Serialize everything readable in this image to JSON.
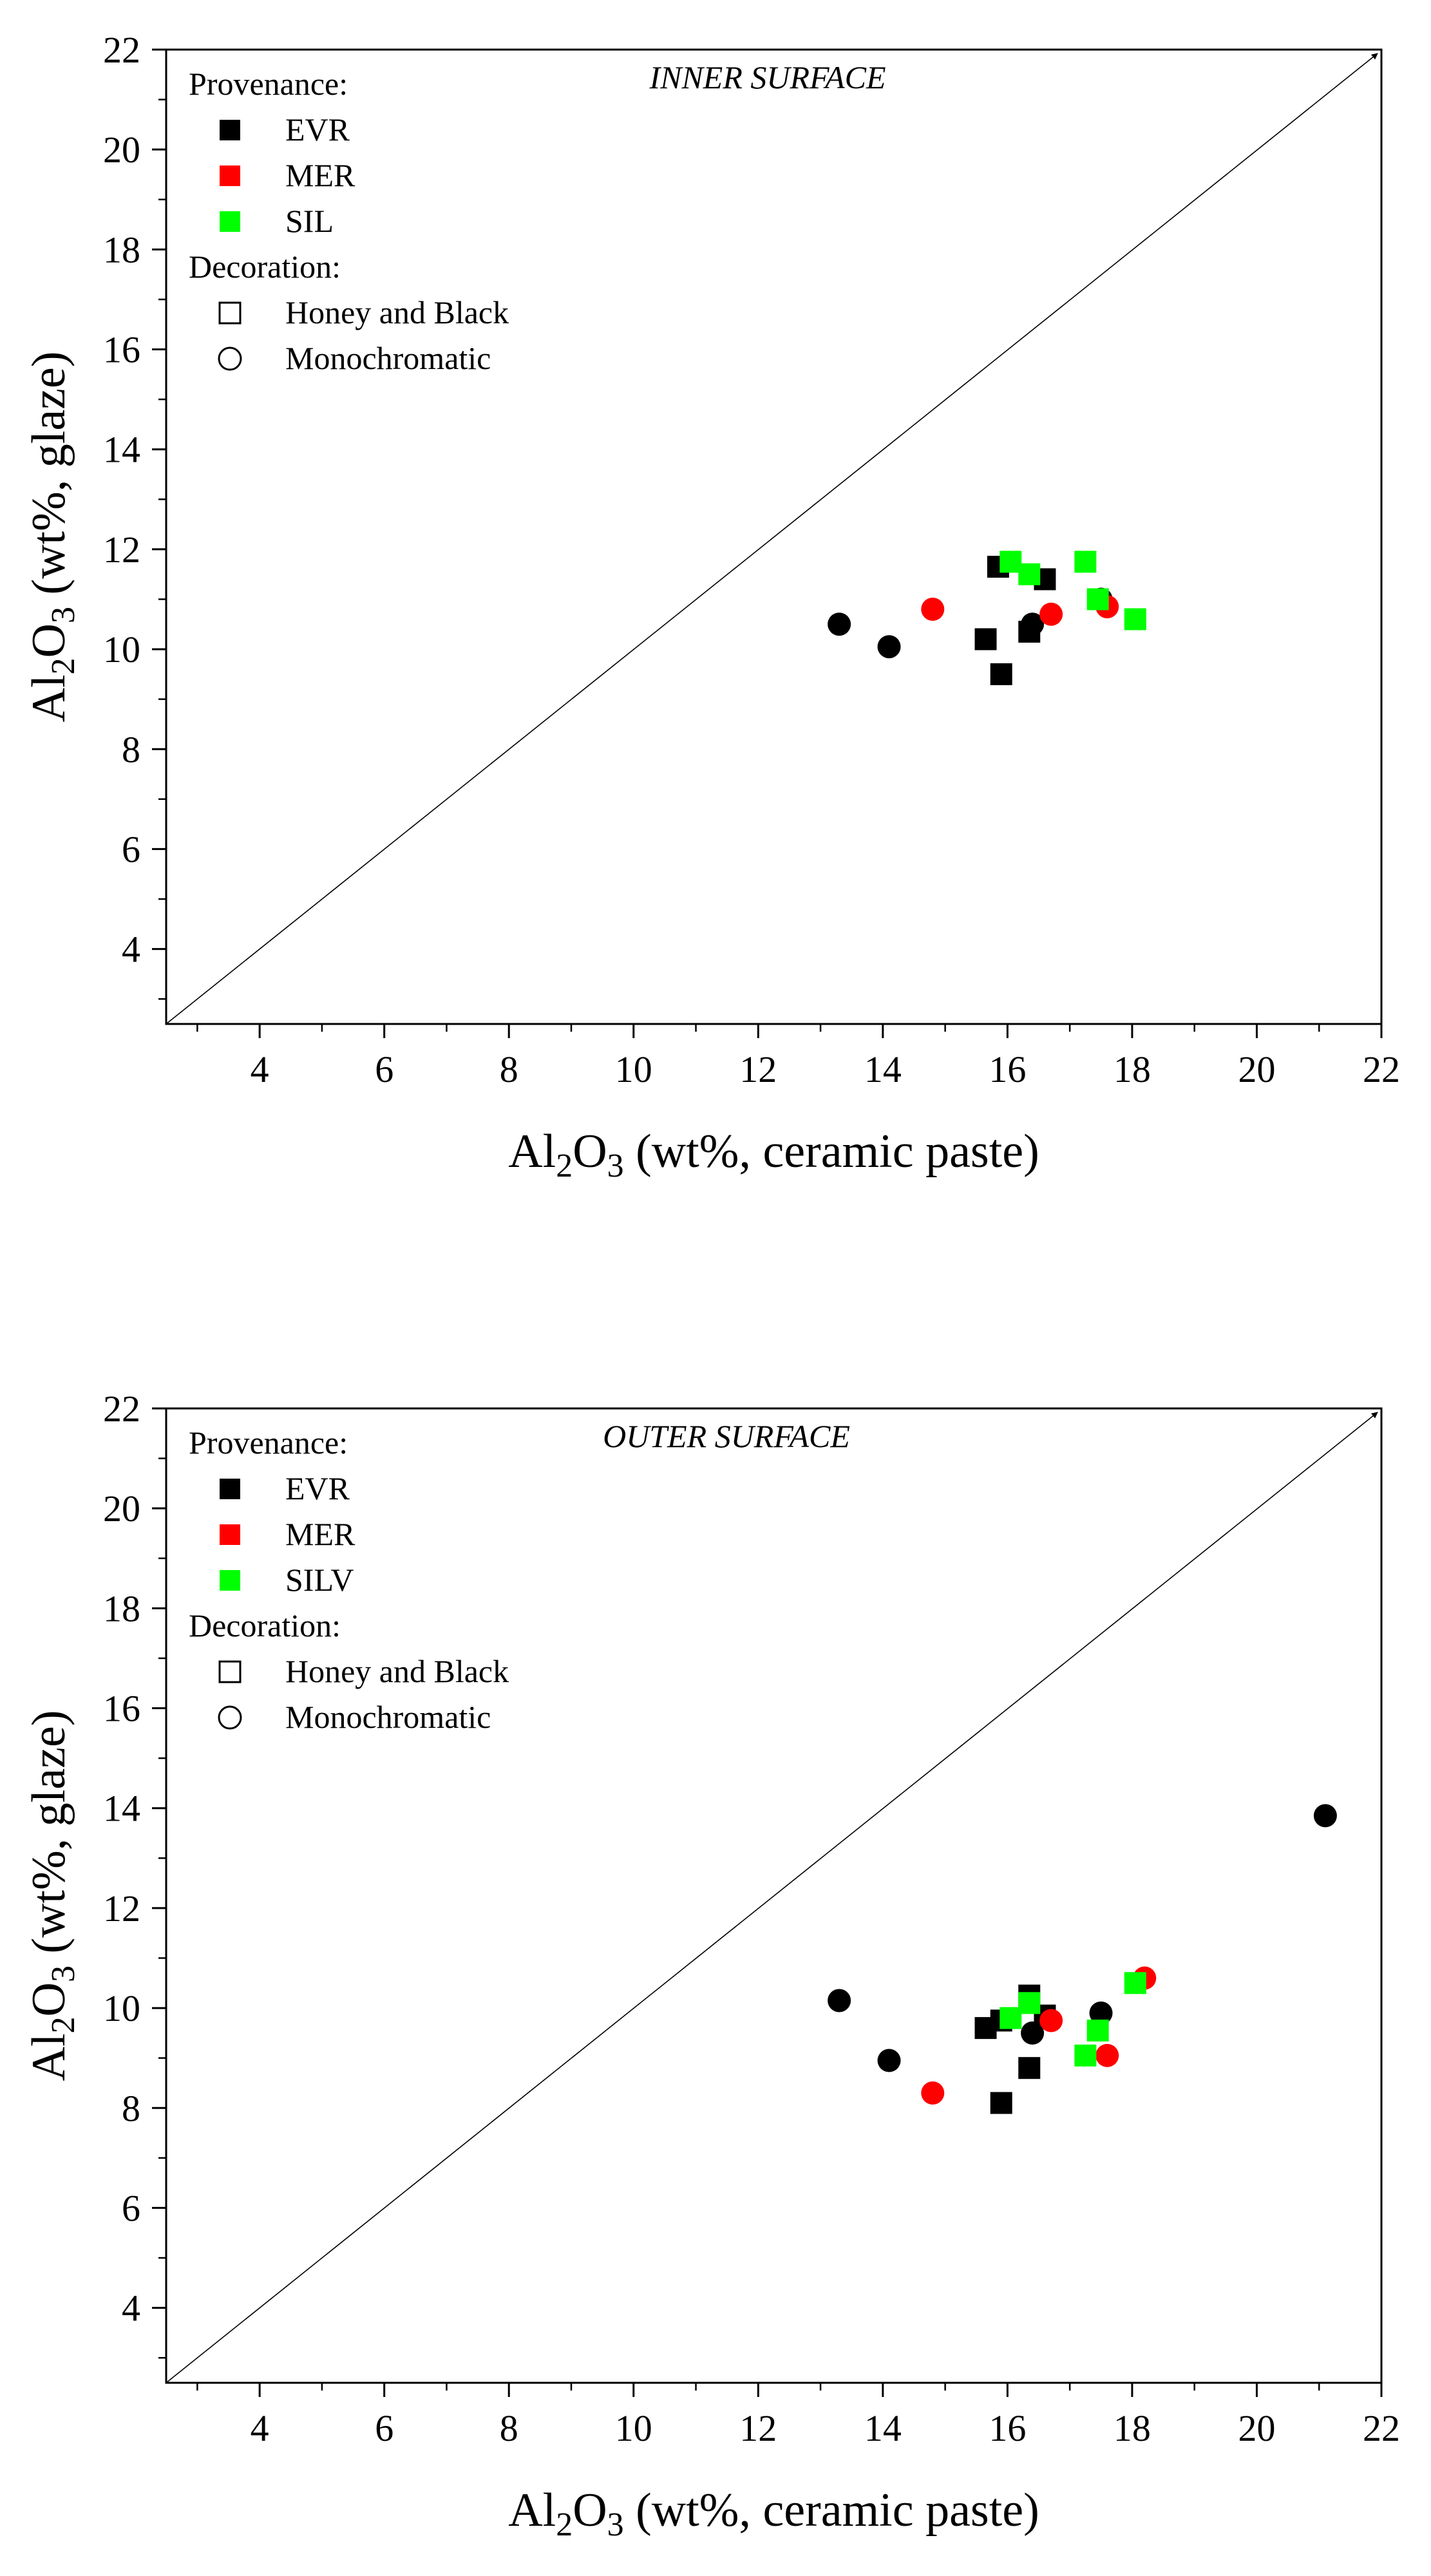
{
  "legend": {
    "decoration_heading": "Decoration:",
    "decoration": [
      {
        "label": "Honey and Black",
        "marker": "square"
      },
      {
        "label": "Monochromatic",
        "marker": "circle"
      }
    ]
  },
  "colors": {
    "EVR": "#000000",
    "MER": "#ff0000",
    "SIL": "#00ff00",
    "SILV": "#00ff00"
  },
  "chart_data": [
    {
      "type": "scatter",
      "title": "INNER SURFACE",
      "xlabel": "Al₂O₃ (wt%, ceramic paste)",
      "ylabel": "Al₂O₃ (wt%, glaze)",
      "xlim": [
        2.5,
        22
      ],
      "ylim": [
        2.5,
        22
      ],
      "xticks": [
        "4",
        "6",
        "8",
        "10",
        "12",
        "14",
        "16",
        "18",
        "20",
        "22"
      ],
      "yticks": [
        "4",
        "6",
        "8",
        "10",
        "12",
        "14",
        "16",
        "18",
        "20",
        "22"
      ],
      "reference_line": "y = x",
      "provenance_heading": "Provenance:",
      "legend_provenance": [
        "EVR",
        "MER",
        "SIL"
      ],
      "series": [
        {
          "provenance": "EVR",
          "decoration": "Honey and Black",
          "marker": "square",
          "points": [
            [
              15.85,
              11.65
            ],
            [
              16.6,
              11.4
            ],
            [
              15.65,
              10.2
            ],
            [
              16.35,
              10.35
            ],
            [
              15.9,
              9.5
            ]
          ]
        },
        {
          "provenance": "EVR",
          "decoration": "Monochromatic",
          "marker": "circle",
          "points": [
            [
              13.3,
              10.5
            ],
            [
              14.1,
              10.05
            ],
            [
              16.4,
              10.5
            ],
            [
              17.5,
              11.0
            ]
          ]
        },
        {
          "provenance": "MER",
          "decoration": "Monochromatic",
          "marker": "circle",
          "points": [
            [
              14.8,
              10.8
            ],
            [
              16.7,
              10.7
            ],
            [
              17.6,
              10.85
            ]
          ]
        },
        {
          "provenance": "SIL",
          "decoration": "Honey and Black",
          "marker": "square",
          "points": [
            [
              16.05,
              11.75
            ],
            [
              16.35,
              11.5
            ],
            [
              17.25,
              11.75
            ],
            [
              17.45,
              11.0
            ],
            [
              18.05,
              10.6
            ]
          ]
        }
      ]
    },
    {
      "type": "scatter",
      "title": "OUTER SURFACE",
      "xlabel": "Al₂O₃ (wt%, ceramic paste)",
      "ylabel": "Al₂O₃ (wt%, glaze)",
      "xlim": [
        2.5,
        22
      ],
      "ylim": [
        2.5,
        22
      ],
      "xticks": [
        "4",
        "6",
        "8",
        "10",
        "12",
        "14",
        "16",
        "18",
        "20",
        "22"
      ],
      "yticks": [
        "4",
        "6",
        "8",
        "10",
        "12",
        "14",
        "16",
        "18",
        "20",
        "22"
      ],
      "reference_line": "y = x",
      "provenance_heading": "Provenance:",
      "legend_provenance": [
        "EVR",
        "MER",
        "SILV"
      ],
      "series": [
        {
          "provenance": "EVR",
          "decoration": "Honey and Black",
          "marker": "square",
          "points": [
            [
              15.65,
              9.6
            ],
            [
              15.9,
              9.75
            ],
            [
              16.35,
              10.25
            ],
            [
              16.6,
              9.85
            ],
            [
              16.35,
              8.8
            ],
            [
              15.9,
              8.1
            ]
          ]
        },
        {
          "provenance": "EVR",
          "decoration": "Monochromatic",
          "marker": "circle",
          "points": [
            [
              13.3,
              10.15
            ],
            [
              14.1,
              8.95
            ],
            [
              16.4,
              9.5
            ],
            [
              17.5,
              9.9
            ],
            [
              21.1,
              13.85
            ]
          ]
        },
        {
          "provenance": "MER",
          "decoration": "Monochromatic",
          "marker": "circle",
          "points": [
            [
              14.8,
              8.3
            ],
            [
              16.7,
              9.75
            ],
            [
              17.6,
              9.05
            ],
            [
              18.2,
              10.6
            ]
          ]
        },
        {
          "provenance": "SILV",
          "decoration": "Honey and Black",
          "marker": "square",
          "points": [
            [
              16.05,
              9.8
            ],
            [
              16.35,
              10.1
            ],
            [
              17.25,
              9.05
            ],
            [
              17.45,
              9.55
            ],
            [
              18.05,
              10.5
            ]
          ]
        }
      ]
    }
  ]
}
